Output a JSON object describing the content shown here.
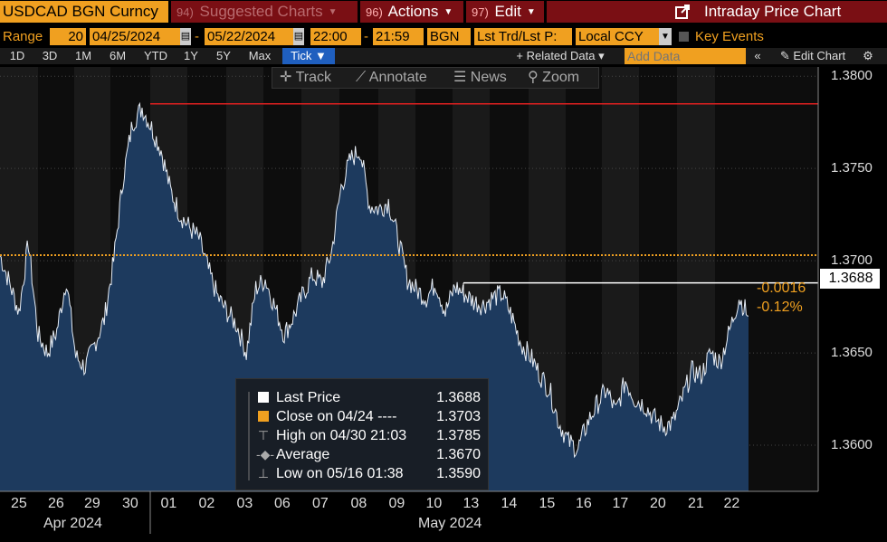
{
  "toolbar": {
    "ticker": "USDCAD BGN Curncy",
    "suggested_num": "94)",
    "suggested_label": "Suggested Charts",
    "actions_num": "96)",
    "actions_label": "Actions",
    "edit_num": "97)",
    "edit_label": "Edit",
    "title": "Intraday Price Chart"
  },
  "range": {
    "label": "Range",
    "days": "20",
    "start_date": "04/25/2024",
    "end_date": "05/22/2024",
    "start_time": "22:00",
    "end_time": "21:59",
    "source": "BGN",
    "mode": "Lst Trd/Lst P:",
    "currency": "Local CCY",
    "key_events": "Key Events"
  },
  "periods": [
    "1D",
    "3D",
    "1M",
    "6M",
    "YTD",
    "1Y",
    "5Y",
    "Max",
    "Tick ▼"
  ],
  "period_selected": "Tick ▼",
  "related": {
    "label": "+ Related Data ▾",
    "placeholder": "Add Data",
    "edit_chart": "Edit Chart"
  },
  "tools": [
    "Track",
    "Annotate",
    "News",
    "Zoom"
  ],
  "legend": {
    "last_price_label": "Last Price",
    "last_price_value": "1.3688",
    "close_label": "Close on 04/24 ----",
    "close_value": "1.3703",
    "high_label": "High on 04/30 21:03",
    "high_value": "1.3785",
    "avg_label": "Average",
    "avg_value": "1.3670",
    "low_label": "Low on 05/16 01:38",
    "low_value": "1.3590"
  },
  "change": {
    "abs": "-0.0016",
    "pct": "-0.12%"
  },
  "last_price_box": "1.3688",
  "colors": {
    "accent": "#f0a020",
    "area": "#1d3a5e",
    "high_line": "#e02020",
    "last_line": "#ffffff",
    "close_line": "#f0a020"
  },
  "chart_data": {
    "type": "area",
    "title": "",
    "xlabel": "",
    "ylabel": "",
    "ylim": [
      1.3575,
      1.3805
    ],
    "y_ticks": [
      "1.3800",
      "1.3750",
      "1.3700",
      "1.3650",
      "1.3600"
    ],
    "x_ticks": [
      "25",
      "26",
      "29",
      "30",
      "01",
      "02",
      "03",
      "06",
      "07",
      "08",
      "09",
      "10",
      "13",
      "14",
      "15",
      "16",
      "17",
      "20",
      "21",
      "22"
    ],
    "month_labels": [
      "Apr 2024",
      "May 2024"
    ],
    "reference_lines": {
      "high": 1.3785,
      "last": 1.3688,
      "previous_close": 1.3703
    },
    "x": [
      "04/25 00:00",
      "04/25 06:00",
      "04/25 12:00",
      "04/25 18:00",
      "04/26 00:00",
      "04/26 06:00",
      "04/26 12:00",
      "04/26 18:00",
      "04/29 00:00",
      "04/29 06:00",
      "04/29 12:00",
      "04/29 18:00",
      "04/30 00:00",
      "04/30 06:00",
      "04/30 12:00",
      "04/30 18:00",
      "05/01 00:00",
      "05/01 06:00",
      "05/01 12:00",
      "05/01 18:00",
      "05/02 00:00",
      "05/02 06:00",
      "05/02 12:00",
      "05/02 18:00",
      "05/03 00:00",
      "05/03 06:00",
      "05/03 12:00",
      "05/03 18:00",
      "05/06 00:00",
      "05/06 06:00",
      "05/06 12:00",
      "05/06 18:00",
      "05/07 00:00",
      "05/07 06:00",
      "05/07 12:00",
      "05/07 18:00",
      "05/08 00:00",
      "05/08 06:00",
      "05/08 12:00",
      "05/08 18:00",
      "05/09 00:00",
      "05/09 06:00",
      "05/09 12:00",
      "05/09 18:00",
      "05/10 00:00",
      "05/10 06:00",
      "05/10 12:00",
      "05/10 18:00",
      "05/13 00:00",
      "05/13 06:00",
      "05/13 12:00",
      "05/13 18:00",
      "05/14 00:00",
      "05/14 06:00",
      "05/14 12:00",
      "05/14 18:00",
      "05/15 00:00",
      "05/15 06:00",
      "05/15 12:00",
      "05/15 18:00",
      "05/16 00:00",
      "05/16 06:00",
      "05/16 12:00",
      "05/16 18:00",
      "05/17 00:00",
      "05/17 06:00",
      "05/17 12:00",
      "05/17 18:00",
      "05/20 00:00",
      "05/20 06:00",
      "05/20 12:00",
      "05/20 18:00",
      "05/21 00:00",
      "05/21 06:00",
      "05/21 12:00",
      "05/21 18:00",
      "05/22 00:00",
      "05/22 06:00",
      "05/22 12:00",
      "05/22 18:00"
    ],
    "series": [
      {
        "values": [
          1.3703,
          1.3688,
          1.3672,
          1.371,
          1.366,
          1.365,
          1.3662,
          1.369,
          1.3648,
          1.3642,
          1.3655,
          1.3668,
          1.37,
          1.3745,
          1.3775,
          1.3783,
          1.3772,
          1.376,
          1.3738,
          1.3725,
          1.3718,
          1.3712,
          1.3695,
          1.368,
          1.3672,
          1.3665,
          1.365,
          1.3685,
          1.369,
          1.3675,
          1.366,
          1.367,
          1.3682,
          1.3692,
          1.3688,
          1.3705,
          1.374,
          1.3755,
          1.376,
          1.373,
          1.3728,
          1.3732,
          1.3712,
          1.369,
          1.3684,
          1.368,
          1.3688,
          1.3672,
          1.3686,
          1.3682,
          1.3678,
          1.3676,
          1.368,
          1.3682,
          1.367,
          1.3655,
          1.3648,
          1.3638,
          1.363,
          1.3612,
          1.3602,
          1.3598,
          1.3612,
          1.3622,
          1.363,
          1.3618,
          1.3635,
          1.3625,
          1.3622,
          1.3615,
          1.361,
          1.3612,
          1.3625,
          1.364,
          1.3638,
          1.365,
          1.3645,
          1.3662,
          1.368,
          1.367
        ]
      }
    ]
  }
}
